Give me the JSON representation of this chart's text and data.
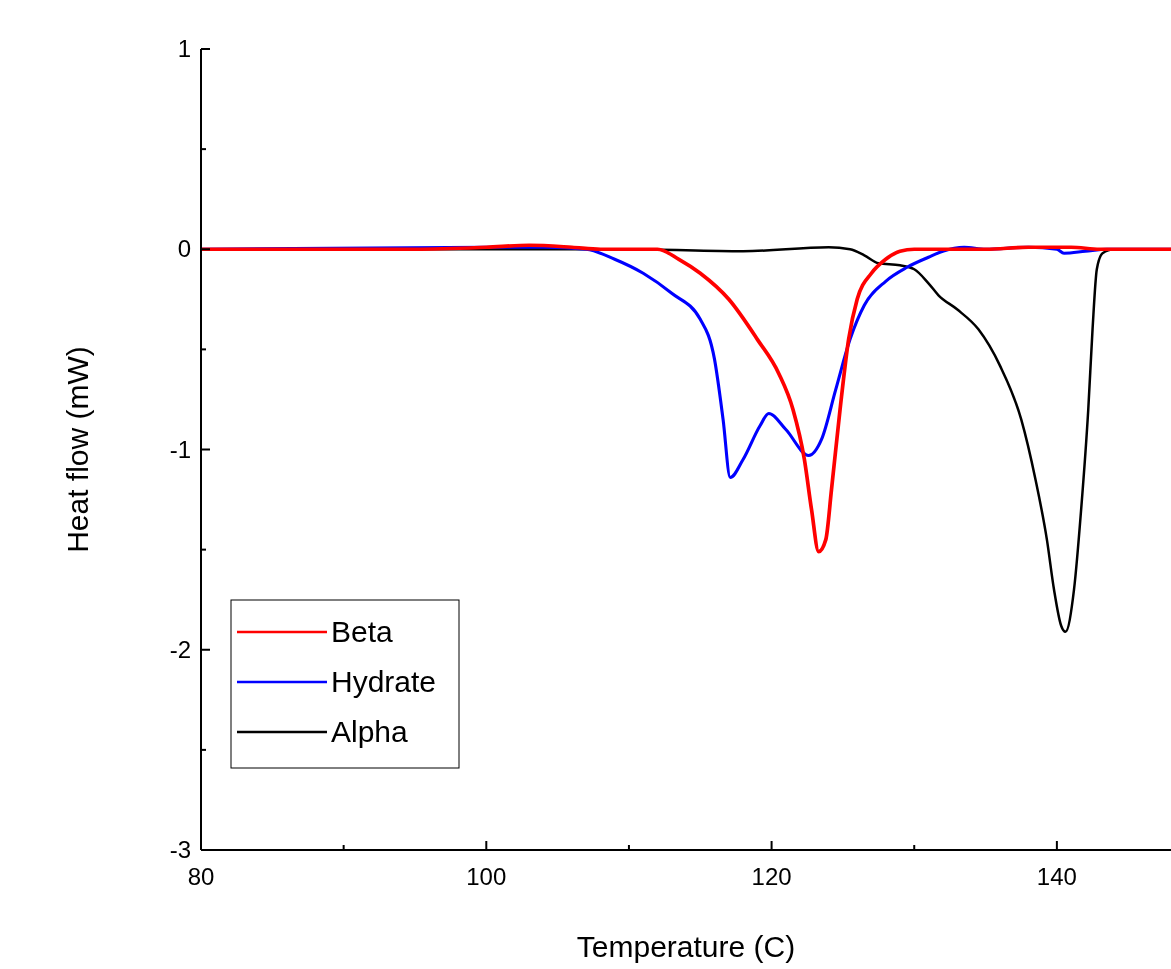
{
  "chart_data": {
    "type": "line",
    "xlabel": "Temperature (C)",
    "ylabel": "Heat flow (mW)",
    "xlim": [
      80,
      148
    ],
    "ylim": [
      -3,
      1
    ],
    "xticks": [
      80,
      {
        "value": 90,
        "label": null
      },
      100,
      {
        "value": 110,
        "label": null
      },
      120,
      {
        "value": 130,
        "label": null
      },
      140
    ],
    "yticks": [
      -3,
      {
        "value": -2.5,
        "label": null
      },
      -2,
      {
        "value": -1.5,
        "label": null
      },
      -1,
      {
        "value": -0.5,
        "label": null
      },
      0,
      {
        "value": 0.5,
        "label": null
      },
      1
    ],
    "grid": false,
    "legend": "bottom left",
    "line_style": "solid",
    "marker": "none",
    "series": [
      {
        "name": "Beta",
        "color": "#ff0000",
        "x": [
          80,
          90,
          95,
          100,
          103,
          106,
          108,
          110,
          112,
          113.5,
          115,
          117,
          119,
          120.5,
          121.5,
          122.3,
          122.8,
          123.3,
          123.8,
          124.2,
          124.8,
          125.4,
          126,
          127,
          128,
          129,
          130,
          135,
          138,
          141,
          143,
          148
        ],
        "values": [
          0,
          0,
          0,
          0.01,
          0.02,
          0.01,
          0,
          0,
          0,
          -0.05,
          -0.12,
          -0.25,
          -0.45,
          -0.62,
          -0.8,
          -1.05,
          -1.3,
          -1.51,
          -1.45,
          -1.2,
          -0.8,
          -0.45,
          -0.25,
          -0.12,
          -0.05,
          -0.01,
          0,
          0,
          0.01,
          0.01,
          0,
          0
        ]
      },
      {
        "name": "Hydrate",
        "color": "#0000ff",
        "x": [
          80,
          100,
          104,
          107,
          109,
          111,
          113,
          115,
          116,
          116.6,
          117.1,
          118,
          119.2,
          119.8,
          121,
          122.6,
          123.5,
          124.5,
          125.5,
          126.5,
          128,
          129.5,
          131,
          132,
          133.5,
          135,
          138,
          140,
          140.5,
          142,
          143.5,
          148
        ],
        "values": [
          0,
          0.01,
          0.01,
          0,
          -0.05,
          -0.12,
          -0.22,
          -0.35,
          -0.55,
          -0.85,
          -1.14,
          -1.05,
          -0.88,
          -0.82,
          -0.9,
          -1.03,
          -0.95,
          -0.7,
          -0.45,
          -0.28,
          -0.16,
          -0.09,
          -0.04,
          -0.01,
          0.01,
          0,
          0.01,
          0,
          -0.02,
          -0.01,
          0,
          0
        ]
      },
      {
        "name": "Alpha",
        "color": "#000000",
        "x": [
          80,
          100,
          110,
          118,
          124,
          125.5,
          126.5,
          127.5,
          129,
          130,
          131,
          131.7,
          133,
          134.5,
          136,
          137.5,
          138.5,
          139.3,
          139.8,
          140.3,
          140.6,
          141.2,
          141.7,
          142.2,
          142.5,
          142.8,
          143.2,
          144,
          148
        ],
        "values": [
          0,
          0,
          0,
          -0.01,
          0.01,
          0,
          -0.03,
          -0.07,
          -0.08,
          -0.1,
          -0.17,
          -0.23,
          -0.3,
          -0.4,
          -0.58,
          -0.85,
          -1.15,
          -1.45,
          -1.7,
          -1.88,
          -1.91,
          -1.7,
          -1.3,
          -0.8,
          -0.4,
          -0.1,
          -0.02,
          0,
          0
        ]
      }
    ]
  }
}
